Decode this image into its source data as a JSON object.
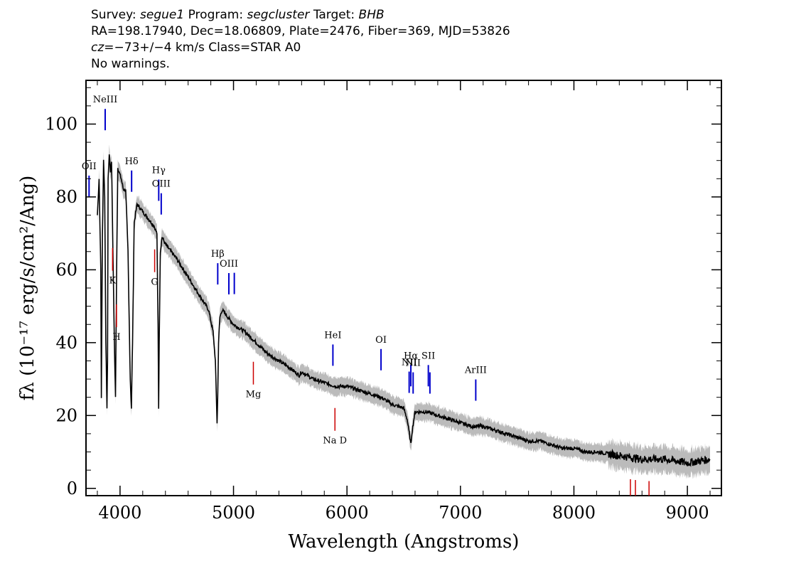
{
  "header": {
    "survey_label": "Survey:",
    "survey": "segue1",
    "program_label": "Program:",
    "program": "segcluster",
    "target_label": "Target:",
    "target": "BHB",
    "line2": "RA=198.17940, Dec=18.06809, Plate=2476, Fiber=369, MJD=53826",
    "cz_label": "cz",
    "cz_value": "=−73+/−4",
    "cz_unit": " km/s Class=STAR A0",
    "line4": "No warnings."
  },
  "chart_data": {
    "type": "line",
    "xlabel": "Wavelength (Angstroms)",
    "ylabel": "fλ (10⁻¹⁷ erg/s/cm²/Ang)",
    "xlim": [
      3700,
      9300
    ],
    "ylim": [
      -2,
      112
    ],
    "xticks": [
      4000,
      5000,
      6000,
      7000,
      8000,
      9000
    ],
    "yticks": [
      0,
      20,
      40,
      60,
      80,
      100
    ],
    "colors": {
      "spectrum": "#000000",
      "error_band": "#bbbbbb",
      "emission": "#0000cc",
      "absorption": "#cc0000"
    },
    "spectrum": {
      "x": [
        3800,
        3815,
        3830,
        3835,
        3845,
        3855,
        3865,
        3875,
        3885,
        3890,
        3895,
        3905,
        3915,
        3925,
        3935,
        3950,
        3960,
        3970,
        3980,
        3990,
        4010,
        4030,
        4050,
        4070,
        4090,
        4100,
        4110,
        4125,
        4150,
        4175,
        4200,
        4250,
        4300,
        4325,
        4335,
        4340,
        4345,
        4355,
        4370,
        4400,
        4450,
        4500,
        4600,
        4700,
        4780,
        4820,
        4840,
        4855,
        4861,
        4868,
        4880,
        4900,
        4950,
        5000,
        5100,
        5200,
        5300,
        5400,
        5500,
        5580,
        5600,
        5700,
        5800,
        5900,
        6000,
        6100,
        6200,
        6300,
        6400,
        6500,
        6530,
        6550,
        6563,
        6575,
        6600,
        6700,
        6800,
        6900,
        7000,
        7100,
        7200,
        7300,
        7400,
        7500,
        7600,
        7700,
        7800,
        7900,
        8000,
        8100,
        8200,
        8300,
        8400,
        8500,
        8600,
        8700,
        8800,
        8900,
        9000,
        9100,
        9200
      ],
      "y": [
        75,
        85,
        60,
        25,
        70,
        90,
        80,
        40,
        22,
        35,
        85,
        92,
        87,
        90,
        70,
        40,
        25,
        60,
        88,
        87,
        85,
        82,
        82,
        65,
        30,
        22,
        40,
        73,
        78,
        77,
        76,
        74,
        72,
        70,
        45,
        22,
        40,
        65,
        69,
        67,
        65,
        63,
        58,
        53,
        49,
        43,
        35,
        18,
        25,
        40,
        47,
        49,
        47,
        45,
        43,
        40,
        37,
        35,
        33,
        31,
        32,
        30,
        29,
        28,
        28,
        27,
        26,
        25,
        23,
        22,
        19,
        15,
        12,
        16,
        21,
        21,
        20,
        19,
        18,
        17,
        17,
        16,
        15,
        14,
        13,
        13,
        12,
        11,
        11,
        10,
        10,
        9.5,
        9,
        8.5,
        8,
        8,
        8,
        7.5,
        7,
        7.5,
        8
      ],
      "error": 2
    },
    "emission_lines": [
      {
        "label": "OII",
        "x": 3727
      },
      {
        "label": "NeIII",
        "x": 3869
      },
      {
        "label": "Hδ",
        "x": 4102
      },
      {
        "label": "Hγ",
        "x": 4341
      },
      {
        "label": "OIII",
        "x": 4363
      },
      {
        "label": "Hβ",
        "x": 4861
      },
      {
        "label": "OIII",
        "x": 4959
      },
      {
        "label": "",
        "x": 5007
      },
      {
        "label": "HeI",
        "x": 5876
      },
      {
        "label": "OI",
        "x": 6300
      },
      {
        "label": "NII",
        "x": 6548
      },
      {
        "label": "Hα",
        "x": 6563
      },
      {
        "label": "NII",
        "x": 6583
      },
      {
        "label": "SII",
        "x": 6717
      },
      {
        "label": "",
        "x": 6731
      },
      {
        "label": "ArIII",
        "x": 7135
      }
    ],
    "absorption_lines": [
      {
        "label": "K",
        "x": 3934
      },
      {
        "label": "H",
        "x": 3969
      },
      {
        "label": "G",
        "x": 4305
      },
      {
        "label": "Mg",
        "x": 5175
      },
      {
        "label": "Na D",
        "x": 5894
      },
      {
        "label": "",
        "x": 8498
      },
      {
        "label": "",
        "x": 8542
      },
      {
        "label": "",
        "x": 8662
      }
    ]
  }
}
